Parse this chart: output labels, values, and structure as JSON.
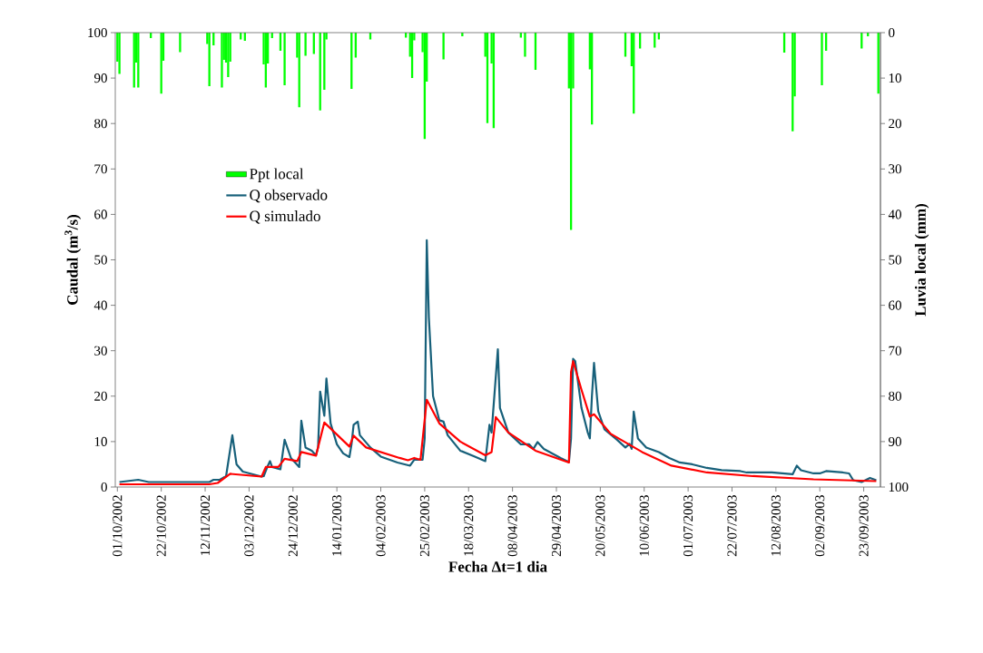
{
  "chart_data": {
    "type": "line",
    "xlabel": "Fecha Δt=1 dia",
    "ylabel": "Caudal (m$^{3}$/s)",
    "y2label": "Luvia local  (mm)",
    "xlim": [
      "2002-09-30",
      "2003-10-01"
    ],
    "xticks": [
      {
        "value": "2002-10-01",
        "label": "01/10/2002"
      },
      {
        "value": "2002-10-22",
        "label": "22/10/2002"
      },
      {
        "value": "2002-11-12",
        "label": "12/11/2002"
      },
      {
        "value": "2002-12-03",
        "label": "03/12/2002"
      },
      {
        "value": "2002-12-24",
        "label": "24/12/2002"
      },
      {
        "value": "2003-01-14",
        "label": "14/01/2003"
      },
      {
        "value": "2003-02-04",
        "label": "04/02/2003"
      },
      {
        "value": "2003-02-25",
        "label": "25/02/2003"
      },
      {
        "value": "2003-03-18",
        "label": "18/03/2003"
      },
      {
        "value": "2003-04-08",
        "label": "08/04/2003"
      },
      {
        "value": "2003-04-29",
        "label": "29/04/2003"
      },
      {
        "value": "2003-05-20",
        "label": "20/05/2003"
      },
      {
        "value": "2003-06-10",
        "label": "10/06/2003"
      },
      {
        "value": "2003-07-01",
        "label": "01/07/2003"
      },
      {
        "value": "2003-07-22",
        "label": "22/07/2003"
      },
      {
        "value": "2003-08-12",
        "label": "12/08/2003"
      },
      {
        "value": "2003-09-02",
        "label": "02/09/2003"
      },
      {
        "value": "2003-09-23",
        "label": "23/09/2003"
      }
    ],
    "ylim": [
      0,
      100
    ],
    "yticks": [
      0,
      10,
      20,
      30,
      40,
      50,
      60,
      70,
      80,
      90,
      100
    ],
    "y2lim": [
      100,
      0
    ],
    "y2ticks": [
      0,
      10,
      20,
      30,
      40,
      50,
      60,
      70,
      80,
      90,
      100
    ],
    "legend": "top left",
    "series": [
      {
        "name": "Ppt local",
        "type": "bar",
        "axis": "y2",
        "color": "#00ff00",
        "x": [
          "2002-10-01",
          "2002-10-02",
          "2002-10-09",
          "2002-10-10",
          "2002-10-11",
          "2002-10-17",
          "2002-10-22",
          "2002-10-23",
          "2002-10-31",
          "2002-11-13",
          "2002-11-14",
          "2002-11-16",
          "2002-11-20",
          "2002-11-21",
          "2002-11-22",
          "2002-11-23",
          "2002-11-24",
          "2002-11-29",
          "2002-12-01",
          "2002-12-10",
          "2002-12-11",
          "2002-12-12",
          "2002-12-14",
          "2002-12-18",
          "2002-12-20",
          "2002-12-26",
          "2002-12-27",
          "2002-12-30",
          "2003-01-03",
          "2003-01-06",
          "2003-01-08",
          "2003-01-09",
          "2003-01-21",
          "2003-01-23",
          "2003-01-30",
          "2003-02-16",
          "2003-02-18",
          "2003-02-19",
          "2003-02-20",
          "2003-02-24",
          "2003-02-25",
          "2003-02-26",
          "2003-03-06",
          "2003-03-15",
          "2003-03-26",
          "2003-03-27",
          "2003-03-29",
          "2003-03-30",
          "2003-04-12",
          "2003-04-14",
          "2003-04-19",
          "2003-05-05",
          "2003-05-06",
          "2003-05-07",
          "2003-05-15",
          "2003-05-16",
          "2003-06-01",
          "2003-06-04",
          "2003-06-05",
          "2003-06-08",
          "2003-06-15",
          "2003-06-17",
          "2003-08-16",
          "2003-08-20",
          "2003-08-21",
          "2003-09-03",
          "2003-09-05",
          "2003-09-22",
          "2003-09-25",
          "2003-09-30"
        ],
        "values": [
          6.4,
          9.1,
          12.1,
          6.6,
          12.1,
          1.2,
          13.4,
          6.2,
          4.3,
          2.5,
          11.8,
          2.8,
          12.1,
          6.0,
          6.6,
          9.8,
          6.4,
          1.5,
          1.8,
          7.0,
          12.1,
          6.8,
          1.2,
          4.0,
          11.6,
          5.5,
          16.4,
          5.1,
          4.7,
          17.1,
          12.6,
          1.5,
          12.4,
          5.5,
          1.5,
          1.1,
          5.3,
          10.0,
          1.7,
          4.3,
          23.4,
          10.8,
          5.9,
          0.8,
          5.3,
          19.9,
          6.8,
          21.0,
          1.1,
          5.3,
          8.2,
          12.3,
          43.4,
          12.3,
          8.1,
          20.2,
          5.3,
          7.4,
          17.8,
          3.5,
          3.3,
          1.5,
          4.4,
          21.7,
          14.0,
          11.6,
          4.0,
          3.5,
          0.8,
          13.4
        ]
      },
      {
        "name": "Q observado",
        "color": "#17607a",
        "x": [
          "2002-10-02",
          "2002-10-11",
          "2002-10-16",
          "2002-11-14",
          "2002-11-16",
          "2002-11-19",
          "2002-11-22",
          "2002-11-25",
          "2002-11-27",
          "2002-11-30",
          "2002-12-09",
          "2002-12-10",
          "2002-12-12",
          "2002-12-13",
          "2002-12-14",
          "2002-12-18",
          "2002-12-20",
          "2002-12-23",
          "2002-12-27",
          "2002-12-28",
          "2002-12-30",
          "2003-01-02",
          "2003-01-04",
          "2003-01-05",
          "2003-01-06",
          "2003-01-08",
          "2003-01-09",
          "2003-01-11",
          "2003-01-14",
          "2003-01-17",
          "2003-01-20",
          "2003-01-21",
          "2003-01-22",
          "2003-01-24",
          "2003-01-25",
          "2003-01-30",
          "2003-02-04",
          "2003-02-12",
          "2003-02-18",
          "2003-02-20",
          "2003-02-24",
          "2003-02-25",
          "2003-02-26",
          "2003-02-27",
          "2003-03-01",
          "2003-03-04",
          "2003-03-06",
          "2003-03-08",
          "2003-03-14",
          "2003-03-21",
          "2003-03-26",
          "2003-03-28",
          "2003-03-29",
          "2003-04-01",
          "2003-04-02",
          "2003-04-06",
          "2003-04-12",
          "2003-04-16",
          "2003-04-18",
          "2003-04-20",
          "2003-04-23",
          "2003-05-01",
          "2003-05-05",
          "2003-05-06",
          "2003-05-07",
          "2003-05-08",
          "2003-05-11",
          "2003-05-14",
          "2003-05-15",
          "2003-05-16",
          "2003-05-17",
          "2003-05-19",
          "2003-05-22",
          "2003-05-28",
          "2003-06-01",
          "2003-06-03",
          "2003-06-04",
          "2003-06-05",
          "2003-06-07",
          "2003-06-11",
          "2003-06-17",
          "2003-06-22",
          "2003-06-27",
          "2003-07-03",
          "2003-07-10",
          "2003-07-17",
          "2003-07-26",
          "2003-07-29",
          "2003-08-10",
          "2003-08-15",
          "2003-08-20",
          "2003-08-22",
          "2003-08-24",
          "2003-08-30",
          "2003-09-02",
          "2003-09-05",
          "2003-09-13",
          "2003-09-16",
          "2003-09-18",
          "2003-09-22",
          "2003-09-26",
          "2003-09-29"
        ],
        "values": [
          1.1,
          1.6,
          1.1,
          1.1,
          1.6,
          1.6,
          2.4,
          11.4,
          5.0,
          3.4,
          2.3,
          2.4,
          4.7,
          5.7,
          4.4,
          3.9,
          10.4,
          6.4,
          4.4,
          14.6,
          8.7,
          8.0,
          7.0,
          8.7,
          21.0,
          15.7,
          23.9,
          14.0,
          9.4,
          7.4,
          6.6,
          9.4,
          13.7,
          14.4,
          11.4,
          8.7,
          6.7,
          5.4,
          4.7,
          6.0,
          6.0,
          10.7,
          54.3,
          37.3,
          20.0,
          14.7,
          14.4,
          11.4,
          8.0,
          6.7,
          5.7,
          13.7,
          12.0,
          30.3,
          17.4,
          12.0,
          9.4,
          9.4,
          8.4,
          9.9,
          8.4,
          6.4,
          5.5,
          10.7,
          28.2,
          27.7,
          17.4,
          12.0,
          10.7,
          20.0,
          27.3,
          16.7,
          12.7,
          10.4,
          8.7,
          9.5,
          8.4,
          16.6,
          10.7,
          8.7,
          7.7,
          6.4,
          5.4,
          5.0,
          4.2,
          3.7,
          3.5,
          3.2,
          3.2,
          3.0,
          2.8,
          4.7,
          3.7,
          3.0,
          3.0,
          3.5,
          3.2,
          3.0,
          1.5,
          1.1,
          2.0,
          1.5
        ]
      },
      {
        "name": "Q simulado",
        "color": "#ff0000",
        "x": [
          "2002-10-02",
          "2002-11-14",
          "2002-11-18",
          "2002-11-24",
          "2002-12-09",
          "2002-12-11",
          "2002-12-17",
          "2002-12-20",
          "2002-12-26",
          "2002-12-28",
          "2003-01-04",
          "2003-01-08",
          "2003-01-20",
          "2003-01-22",
          "2003-01-28",
          "2003-02-13",
          "2003-02-17",
          "2003-02-20",
          "2003-02-23",
          "2003-02-26",
          "2003-03-04",
          "2003-03-14",
          "2003-03-26",
          "2003-03-29",
          "2003-03-31",
          "2003-04-06",
          "2003-04-19",
          "2003-05-05",
          "2003-05-06",
          "2003-05-07",
          "2003-05-11",
          "2003-05-15",
          "2003-05-17",
          "2003-05-25",
          "2003-06-09",
          "2003-06-23",
          "2003-07-10",
          "2003-08-01",
          "2003-08-30",
          "2003-09-29"
        ],
        "values": [
          0.6,
          0.6,
          0.9,
          2.9,
          2.3,
          4.4,
          4.4,
          6.2,
          5.7,
          7.7,
          6.9,
          14.2,
          8.9,
          11.3,
          8.7,
          6.4,
          5.9,
          6.4,
          6.0,
          19.2,
          14.0,
          10.0,
          7.0,
          7.7,
          15.4,
          12.0,
          8.0,
          5.4,
          25.3,
          27.7,
          21.4,
          15.5,
          16.0,
          11.7,
          7.7,
          4.7,
          3.2,
          2.4,
          1.7,
          1.3
        ]
      }
    ]
  }
}
